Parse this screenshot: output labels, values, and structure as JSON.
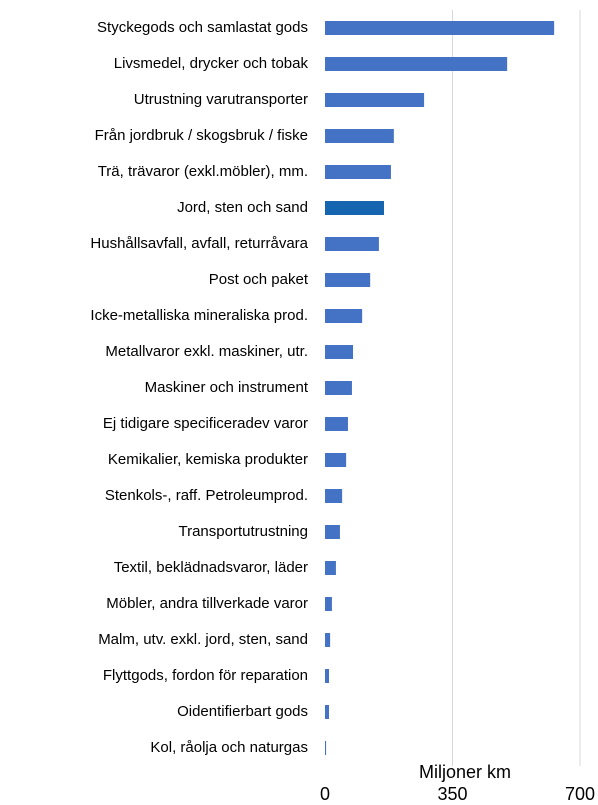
{
  "chart_data": {
    "type": "barh",
    "categories": [
      "Styckegods och samlastat gods",
      "Livsmedel, drycker och tobak",
      "Utrustning varutransporter",
      "Från jordbruk / skogsbruk / fiske",
      "Trä, trävaror (exkl.möbler), mm.",
      "Jord, sten och sand",
      "Hushållsavfall, avfall, returråvara",
      "Post och paket",
      "Icke-metalliska mineraliska prod.",
      "Metallvaror exkl. maskiner, utr.",
      "Maskiner och instrument",
      "Ej tidigare specificeradev varor",
      "Kemikalier, kemiska produkter",
      "Stenkols-, raff. Petroleumprod.",
      "Transportutrustning",
      "Textil, beklädnadsvaror, läder",
      "Möbler, andra tillverkade varor",
      "Malm, utv. exkl. jord, sten, sand",
      "Flyttgods, fordon för reparation",
      "Oidentifierbart gods",
      "Kol, råolja och naturgas"
    ],
    "values": [
      629,
      500,
      272,
      189,
      181,
      162,
      148,
      124,
      102,
      77,
      74,
      63,
      58,
      47,
      41,
      30,
      19,
      14,
      11,
      11,
      3
    ],
    "colors": [
      "#4472c4",
      "#4472c4",
      "#4472c4",
      "#4472c4",
      "#4472c4",
      "#1565b0",
      "#4472c4",
      "#4472c4",
      "#4472c4",
      "#4472c4",
      "#4472c4",
      "#4472c4",
      "#4472c4",
      "#4472c4",
      "#4472c4",
      "#4472c4",
      "#4472c4",
      "#4472c4",
      "#4472c4",
      "#4472c4",
      "#4472c4"
    ],
    "xlabel": "Miljoner km",
    "xlim": [
      0,
      700
    ],
    "xticks": [
      0,
      350,
      700
    ],
    "grid": true
  }
}
